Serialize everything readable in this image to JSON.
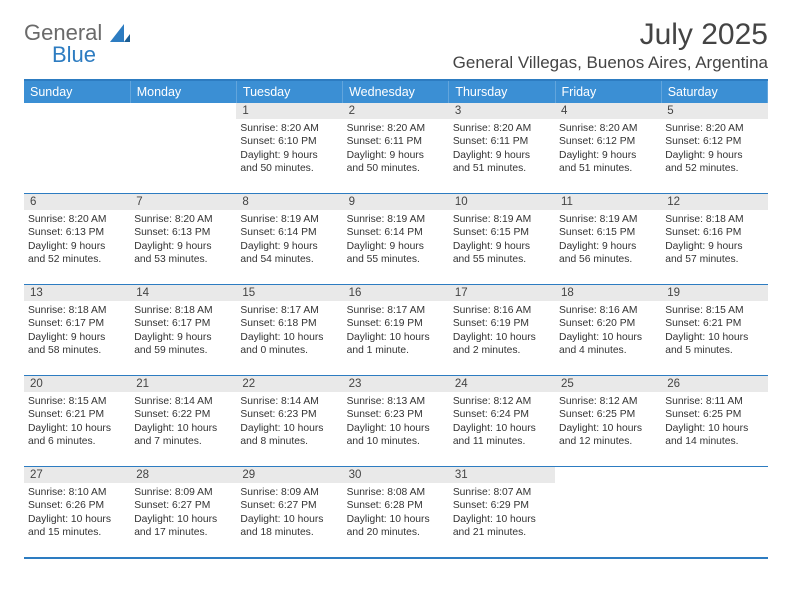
{
  "brand": {
    "part1": "General",
    "part2": "Blue",
    "sail_color": "#2d7cc1"
  },
  "title": "July 2025",
  "location": "General Villegas, Buenos Aires, Argentina",
  "colors": {
    "header_bg": "#3b8fd4",
    "header_text": "#ffffff",
    "rule": "#2d7cc1",
    "daynum_bg": "#e9e9e9",
    "text": "#333"
  },
  "weekdays": [
    "Sunday",
    "Monday",
    "Tuesday",
    "Wednesday",
    "Thursday",
    "Friday",
    "Saturday"
  ],
  "weeks": [
    [
      {
        "empty": true
      },
      {
        "empty": true
      },
      {
        "day": "1",
        "sunrise": "Sunrise: 8:20 AM",
        "sunset": "Sunset: 6:10 PM",
        "daylight": "Daylight: 9 hours and 50 minutes."
      },
      {
        "day": "2",
        "sunrise": "Sunrise: 8:20 AM",
        "sunset": "Sunset: 6:11 PM",
        "daylight": "Daylight: 9 hours and 50 minutes."
      },
      {
        "day": "3",
        "sunrise": "Sunrise: 8:20 AM",
        "sunset": "Sunset: 6:11 PM",
        "daylight": "Daylight: 9 hours and 51 minutes."
      },
      {
        "day": "4",
        "sunrise": "Sunrise: 8:20 AM",
        "sunset": "Sunset: 6:12 PM",
        "daylight": "Daylight: 9 hours and 51 minutes."
      },
      {
        "day": "5",
        "sunrise": "Sunrise: 8:20 AM",
        "sunset": "Sunset: 6:12 PM",
        "daylight": "Daylight: 9 hours and 52 minutes."
      }
    ],
    [
      {
        "day": "6",
        "sunrise": "Sunrise: 8:20 AM",
        "sunset": "Sunset: 6:13 PM",
        "daylight": "Daylight: 9 hours and 52 minutes."
      },
      {
        "day": "7",
        "sunrise": "Sunrise: 8:20 AM",
        "sunset": "Sunset: 6:13 PM",
        "daylight": "Daylight: 9 hours and 53 minutes."
      },
      {
        "day": "8",
        "sunrise": "Sunrise: 8:19 AM",
        "sunset": "Sunset: 6:14 PM",
        "daylight": "Daylight: 9 hours and 54 minutes."
      },
      {
        "day": "9",
        "sunrise": "Sunrise: 8:19 AM",
        "sunset": "Sunset: 6:14 PM",
        "daylight": "Daylight: 9 hours and 55 minutes."
      },
      {
        "day": "10",
        "sunrise": "Sunrise: 8:19 AM",
        "sunset": "Sunset: 6:15 PM",
        "daylight": "Daylight: 9 hours and 55 minutes."
      },
      {
        "day": "11",
        "sunrise": "Sunrise: 8:19 AM",
        "sunset": "Sunset: 6:15 PM",
        "daylight": "Daylight: 9 hours and 56 minutes."
      },
      {
        "day": "12",
        "sunrise": "Sunrise: 8:18 AM",
        "sunset": "Sunset: 6:16 PM",
        "daylight": "Daylight: 9 hours and 57 minutes."
      }
    ],
    [
      {
        "day": "13",
        "sunrise": "Sunrise: 8:18 AM",
        "sunset": "Sunset: 6:17 PM",
        "daylight": "Daylight: 9 hours and 58 minutes."
      },
      {
        "day": "14",
        "sunrise": "Sunrise: 8:18 AM",
        "sunset": "Sunset: 6:17 PM",
        "daylight": "Daylight: 9 hours and 59 minutes."
      },
      {
        "day": "15",
        "sunrise": "Sunrise: 8:17 AM",
        "sunset": "Sunset: 6:18 PM",
        "daylight": "Daylight: 10 hours and 0 minutes."
      },
      {
        "day": "16",
        "sunrise": "Sunrise: 8:17 AM",
        "sunset": "Sunset: 6:19 PM",
        "daylight": "Daylight: 10 hours and 1 minute."
      },
      {
        "day": "17",
        "sunrise": "Sunrise: 8:16 AM",
        "sunset": "Sunset: 6:19 PM",
        "daylight": "Daylight: 10 hours and 2 minutes."
      },
      {
        "day": "18",
        "sunrise": "Sunrise: 8:16 AM",
        "sunset": "Sunset: 6:20 PM",
        "daylight": "Daylight: 10 hours and 4 minutes."
      },
      {
        "day": "19",
        "sunrise": "Sunrise: 8:15 AM",
        "sunset": "Sunset: 6:21 PM",
        "daylight": "Daylight: 10 hours and 5 minutes."
      }
    ],
    [
      {
        "day": "20",
        "sunrise": "Sunrise: 8:15 AM",
        "sunset": "Sunset: 6:21 PM",
        "daylight": "Daylight: 10 hours and 6 minutes."
      },
      {
        "day": "21",
        "sunrise": "Sunrise: 8:14 AM",
        "sunset": "Sunset: 6:22 PM",
        "daylight": "Daylight: 10 hours and 7 minutes."
      },
      {
        "day": "22",
        "sunrise": "Sunrise: 8:14 AM",
        "sunset": "Sunset: 6:23 PM",
        "daylight": "Daylight: 10 hours and 8 minutes."
      },
      {
        "day": "23",
        "sunrise": "Sunrise: 8:13 AM",
        "sunset": "Sunset: 6:23 PM",
        "daylight": "Daylight: 10 hours and 10 minutes."
      },
      {
        "day": "24",
        "sunrise": "Sunrise: 8:12 AM",
        "sunset": "Sunset: 6:24 PM",
        "daylight": "Daylight: 10 hours and 11 minutes."
      },
      {
        "day": "25",
        "sunrise": "Sunrise: 8:12 AM",
        "sunset": "Sunset: 6:25 PM",
        "daylight": "Daylight: 10 hours and 12 minutes."
      },
      {
        "day": "26",
        "sunrise": "Sunrise: 8:11 AM",
        "sunset": "Sunset: 6:25 PM",
        "daylight": "Daylight: 10 hours and 14 minutes."
      }
    ],
    [
      {
        "day": "27",
        "sunrise": "Sunrise: 8:10 AM",
        "sunset": "Sunset: 6:26 PM",
        "daylight": "Daylight: 10 hours and 15 minutes."
      },
      {
        "day": "28",
        "sunrise": "Sunrise: 8:09 AM",
        "sunset": "Sunset: 6:27 PM",
        "daylight": "Daylight: 10 hours and 17 minutes."
      },
      {
        "day": "29",
        "sunrise": "Sunrise: 8:09 AM",
        "sunset": "Sunset: 6:27 PM",
        "daylight": "Daylight: 10 hours and 18 minutes."
      },
      {
        "day": "30",
        "sunrise": "Sunrise: 8:08 AM",
        "sunset": "Sunset: 6:28 PM",
        "daylight": "Daylight: 10 hours and 20 minutes."
      },
      {
        "day": "31",
        "sunrise": "Sunrise: 8:07 AM",
        "sunset": "Sunset: 6:29 PM",
        "daylight": "Daylight: 10 hours and 21 minutes."
      },
      {
        "empty": true
      },
      {
        "empty": true
      }
    ]
  ]
}
